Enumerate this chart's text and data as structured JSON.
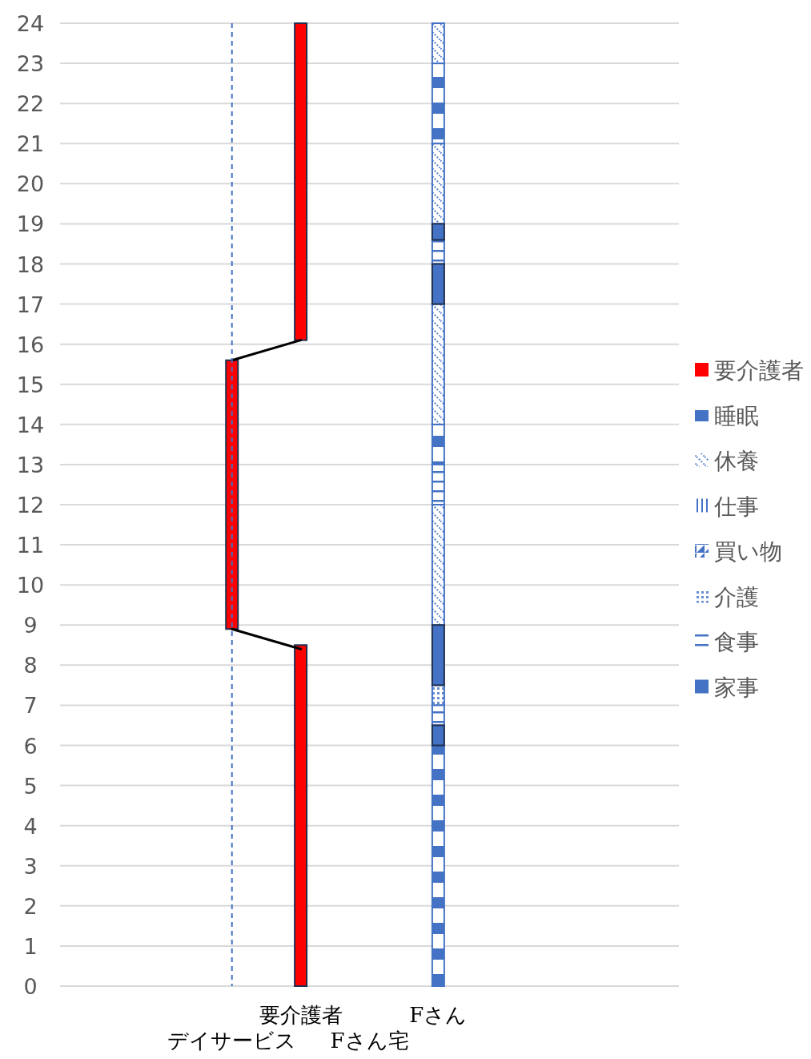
{
  "chart_data": {
    "type": "bar",
    "categories": [
      null,
      null,
      "デイサービス",
      "要介護者",
      "Fさん宅",
      "Fさん",
      null,
      null,
      null
    ],
    "series": [
      {
        "name": "要介護者",
        "color": "#ff0000",
        "x": [
          "要介護者",
          "デイサービス",
          "要介護者"
        ],
        "base": [
          0,
          8.9,
          16.1
        ],
        "values": [
          8.5,
          6.7,
          7.9
        ]
      },
      {
        "name": "睡眠",
        "color": "#4472c4",
        "x": [
          "Fさん",
          "Fさん",
          "Fさん"
        ],
        "base": [
          0,
          13,
          21
        ],
        "values": [
          6,
          1,
          2
        ]
      },
      {
        "name": "休養",
        "color": "#4472c4",
        "x": [
          "Fさん",
          "Fさん",
          "Fさん",
          "Fさん"
        ],
        "base": [
          9,
          14,
          19,
          23
        ],
        "values": [
          3,
          3,
          2,
          1
        ]
      },
      {
        "name": "仕事",
        "color": "#4472c4",
        "values": [
          null,
          null,
          null,
          null,
          null,
          null,
          null,
          null,
          null
        ]
      },
      {
        "name": "買い物",
        "color": "#4472c4",
        "values": [
          null,
          null,
          null,
          null,
          null,
          null,
          null,
          null,
          null
        ]
      },
      {
        "name": "介護",
        "color": "#4472c4",
        "x": [
          "Fさん"
        ],
        "base": [
          7
        ],
        "values": [
          0.5
        ]
      },
      {
        "name": "食事",
        "color": "#4472c4",
        "x": [
          "Fさん",
          "Fさん",
          "Fさん"
        ],
        "base": [
          6.5,
          12,
          18
        ],
        "values": [
          0.5,
          1,
          0.6
        ]
      },
      {
        "name": "家事",
        "color": "#4472c4",
        "x": [
          "Fさん",
          "Fさん",
          "Fさん",
          "Fさん"
        ],
        "base": [
          6,
          7.5,
          17,
          18.6
        ],
        "values": [
          0.5,
          1.5,
          1,
          0.4
        ]
      },
      {
        "type": "line",
        "color": "#000000",
        "x": [
          "デイサービス",
          "要介護者"
        ],
        "values": [
          8.9,
          8.4
        ]
      },
      {
        "type": "line",
        "color": "#000000",
        "x": [
          "デイサービス",
          "要介護者"
        ],
        "values": [
          15.6,
          16.1
        ]
      }
    ],
    "ylim": [
      0,
      24
    ],
    "yticks": [
      0,
      1,
      2,
      3,
      4,
      5,
      6,
      7,
      8,
      9,
      10,
      11,
      12,
      13,
      14,
      15,
      16,
      17,
      18,
      19,
      20,
      21,
      22,
      23,
      24
    ],
    "grid": "y",
    "legend": "right",
    "ref_lines": [
      {
        "axis": "x",
        "value": "デイサービス",
        "color": "#4472c4",
        "line_style": "dashed"
      }
    ]
  }
}
